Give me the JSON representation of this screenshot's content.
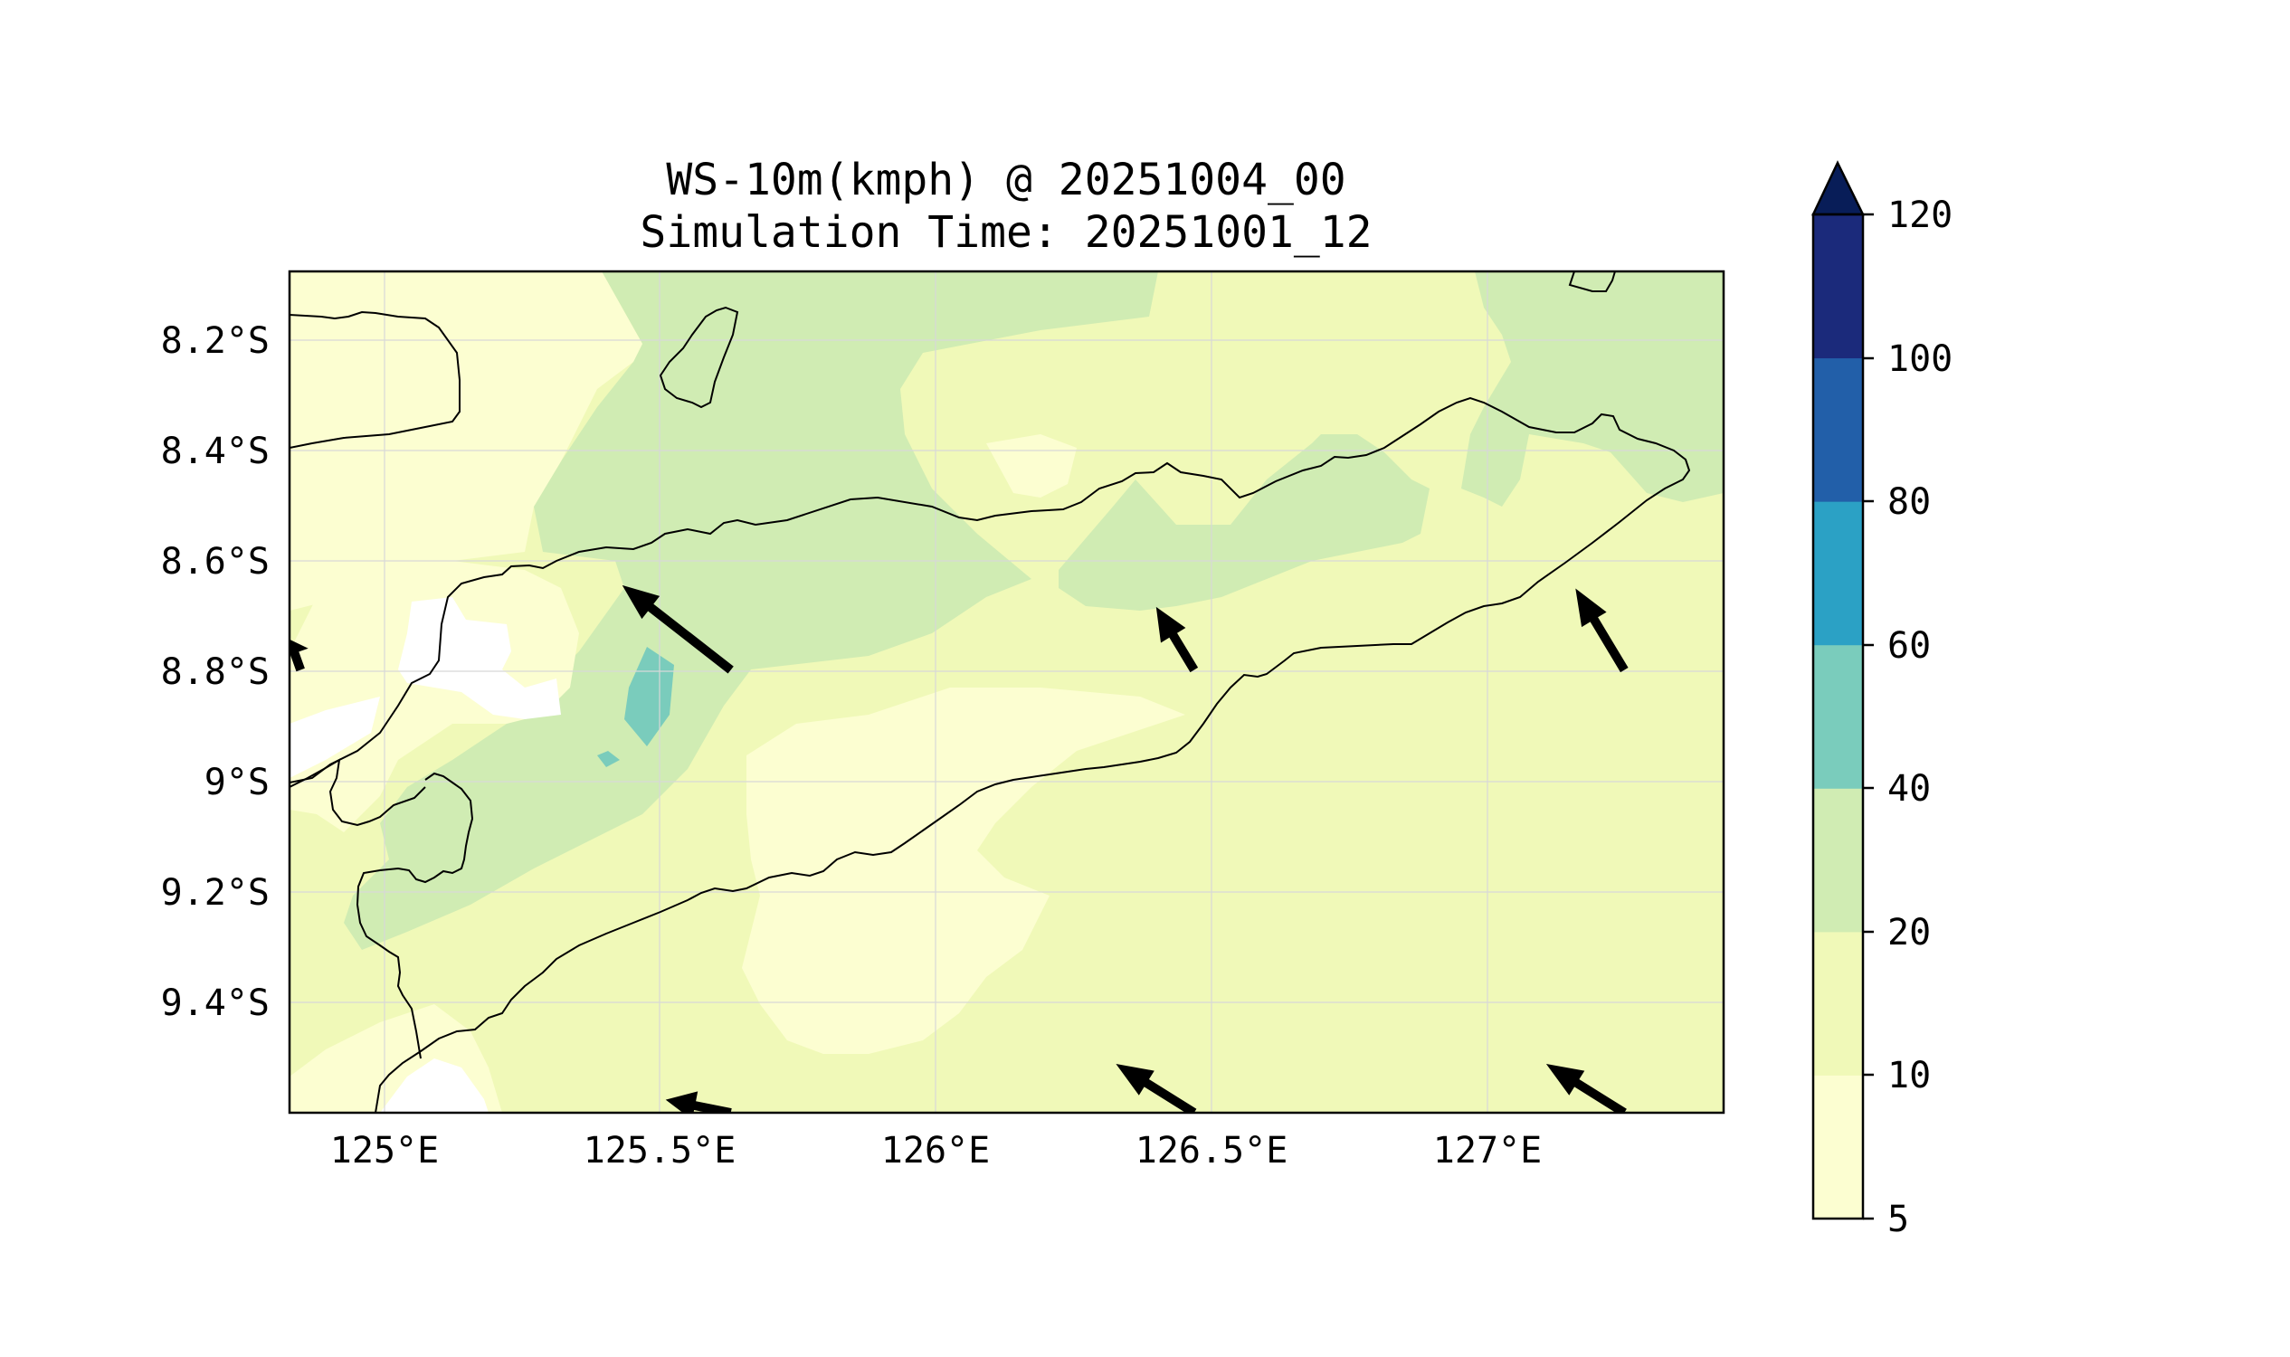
{
  "title": {
    "line1": "WS-10m(kmph) @ 20251004_00",
    "line2": "Simulation Time: 20251001_12"
  },
  "map": {
    "lon_ticks": [
      "125°E",
      "125.5°E",
      "126°E",
      "126.5°E",
      "127°E"
    ],
    "lon_values": [
      125.0,
      125.5,
      126.0,
      126.5,
      127.0
    ],
    "lat_ticks": [
      "8.2°S",
      "8.4°S",
      "8.6°S",
      "8.8°S",
      "9°S",
      "9.2°S",
      "9.4°S"
    ],
    "lat_values": [
      -8.2,
      -8.4,
      -8.6,
      -8.8,
      -9.0,
      -9.2,
      -9.4
    ],
    "lon_range": [
      124.83,
      127.43
    ],
    "lat_range": [
      -9.6,
      -8.08
    ],
    "gridlines": true
  },
  "colorbar": {
    "levels": [
      "5",
      "10",
      "20",
      "40",
      "60",
      "80",
      "100",
      "120"
    ],
    "colors": [
      "#fcfed1",
      "#f0f9b8",
      "#d0ecb3",
      "#7accbc",
      "#2ba1c5",
      "#225fa9",
      "#1b2a7b"
    ],
    "extend_color": "#081d58",
    "extend": "max"
  },
  "wind_arrows": [
    {
      "lon": 125.63,
      "lat": -8.8,
      "u": -1.0,
      "v": 0.78
    },
    {
      "lon": 126.47,
      "lat": -8.8,
      "u": -0.35,
      "v": 0.58
    },
    {
      "lon": 127.25,
      "lat": -8.8,
      "u": -0.45,
      "v": 0.75
    },
    {
      "lon": 124.85,
      "lat": -8.8,
      "u": -0.1,
      "v": 0.28
    },
    {
      "lon": 125.63,
      "lat": -9.6,
      "u": -0.6,
      "v": 0.12
    },
    {
      "lon": 126.47,
      "lat": -9.6,
      "u": -0.72,
      "v": 0.45
    },
    {
      "lon": 127.25,
      "lat": -9.6,
      "u": -0.72,
      "v": 0.45
    }
  ]
}
